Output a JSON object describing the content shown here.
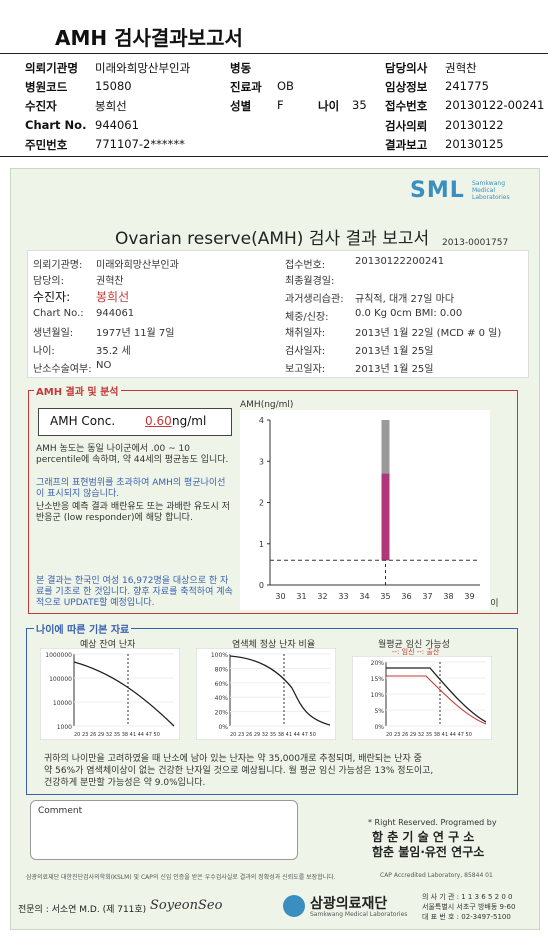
{
  "header": {
    "title": "AMH 검사결과보고서",
    "fields": [
      {
        "k": "의뢰기관명",
        "v": "미래와희망산부인과"
      },
      {
        "k": "병원코드",
        "v": "15080"
      },
      {
        "k": "수진자",
        "v": "봉희선"
      },
      {
        "k": "Chart No.",
        "v": "944061"
      },
      {
        "k": "주민번호",
        "v": "771107-2******"
      },
      {
        "k": "병동",
        "v": ""
      },
      {
        "k": "진료과",
        "v": "OB"
      },
      {
        "k": "성별",
        "v": "F"
      },
      {
        "k": "나이",
        "v": "35"
      },
      {
        "k": "담당의사",
        "v": "권혁찬"
      },
      {
        "k": "임상정보",
        "v": "241775"
      },
      {
        "k": "접수번호",
        "v": "20130122-00241"
      },
      {
        "k": "검사의뢰",
        "v": "20130122"
      },
      {
        "k": "결과보고",
        "v": "20130125"
      }
    ]
  },
  "report": {
    "logo": "SML",
    "logo_sub1": "Samkwang",
    "logo_sub2": "Medical",
    "logo_sub3": "Laboratories",
    "title": "Ovarian reserve(AMH) 검사 결과 보고서",
    "doc_no": "2013-0001757",
    "left_fields": [
      {
        "k": "의뢰기관명:",
        "v": "미래와희망산부인과"
      },
      {
        "k": "담당의:",
        "v": "권혁찬"
      },
      {
        "k": "수진자:",
        "v": "봉희선"
      },
      {
        "k": "Chart No.:",
        "v": "944061"
      },
      {
        "k": "생년월일:",
        "v": "1977년 11월 7일"
      },
      {
        "k": "나이:",
        "v": "35.2 세"
      },
      {
        "k": "난소수술여부:",
        "v": "NO"
      }
    ],
    "right_fields": [
      {
        "k": "접수번호:",
        "v": "20130122200241"
      },
      {
        "k": "최종월경일:",
        "v": ""
      },
      {
        "k": "과거생리습관:",
        "v": "규칙적, 대개 27일 마다"
      },
      {
        "k": "체중/신장:",
        "v": "0.0 Kg      0cm   BMI:   0.00"
      },
      {
        "k": "채취일자:",
        "v": "2013년 1월 22일  (MCD # 0 일)"
      },
      {
        "k": "검사일자:",
        "v": "2013년 1월 25일"
      },
      {
        "k": "보고일자:",
        "v": "2013년 1월 25일"
      }
    ],
    "amh_section": {
      "title": "AMH 결과 및 분석",
      "conc_label": "AMH Conc.",
      "conc_value": "0.60",
      "conc_unit": "ng/ml",
      "p1": "AMH 농도는 동일 나이군에서  .00 ~ 10 percentile에 속하며, 약  44세의 평균농도 입니다.",
      "p2": "그래프의 표현범위를 초과하여 AMH의 평균나이선이 표시되지 않습니다.",
      "p3": "난소반응 예측 결과 배란유도 또는 과배란 유도시 저반응군 (low responder)에 해당 합니다.",
      "p4": "본 결과는 한국인 여성 16,972명을 대상으로 한 자료를 기초로 한 것입니다. 향후 자료를 축적하여 계속적으로 UPDATE할 예정입니다."
    },
    "amh_chart": {
      "ylabel": "AMH(ng/ml)",
      "xlabel": "나이"
    },
    "age_section": {
      "title": "나이에 따른 기본 자료",
      "c1_title": "예상 잔여 난자",
      "c2_title": "염색체 정상 난자 비율",
      "c3_title": "월평균 임신 가능성",
      "c3_legend": "--: 임신 --: 출산",
      "c1_y": [
        "1000000",
        "100000",
        "10000",
        "1000"
      ],
      "c2_y": [
        "100%",
        "80%",
        "60%",
        "40%",
        "20%",
        "0%"
      ],
      "c3_y": [
        "20%",
        "15%",
        "10%",
        "5%",
        "0%"
      ],
      "x_ticks": "20 23 26 29 32 35 38 41 44 47 50",
      "summary1": "귀하의 나이만을 고려하였을 때 난소에 남아 있는 난자는 약   35,000개로 추정되며, 배란되는 난자 중",
      "summary2": "약  56%가 염색체이상이 없는 건강한 난자일 것으로 예상됩니다. 월 평균 임신 가능성은   13% 정도이고,",
      "summary3": "건강하게 분만할 가능성은 약  9.0%입니다."
    },
    "comment_label": "Comment",
    "rights": "* Right Reserved. Programed by",
    "org1": "함 춘  기 술  연 구 소",
    "org2": "함춘 불임·유전 연구소",
    "footnote": "삼광의료재단 대한진단검사의학회(KSLM) 및 CAP의 신임 인증을 받은 우수검사실로 결과의 정확성과 신뢰도를 보장합니다.",
    "cap": "CAP  Accredited  Laboratory,  85844 01",
    "specialist": "전문의 : 서소연 M.D. (제 711호)",
    "signature": "SoyeonSeo",
    "foundation": "삼광의료재단",
    "foundation_en": "Samkwang Medical Laboratories",
    "contact1": "의 사 기 관 : 1 1 3 6 5 2 0 0",
    "contact2": "서울특별시 서초구 방배동 9-60",
    "contact3": "대 표 번 호 : 02-3497-5100"
  },
  "chart_data": [
    {
      "type": "bar",
      "title": "",
      "ylabel": "AMH(ng/ml)",
      "xlabel": "나이",
      "x": [
        30,
        31,
        32,
        33,
        34,
        35,
        36,
        37,
        38,
        39
      ],
      "ylim": [
        0,
        4
      ],
      "series": [
        {
          "name": "",
          "color": "#9a9a9a",
          "values": [
            null,
            null,
            null,
            null,
            null,
            4.0,
            null,
            null,
            null,
            null
          ]
        },
        {
          "name": "",
          "color": "#b0387a",
          "values": [
            null,
            null,
            null,
            null,
            null,
            2.7,
            null,
            null,
            null,
            null
          ]
        }
      ],
      "reference_line": 0.6
    }
  ]
}
